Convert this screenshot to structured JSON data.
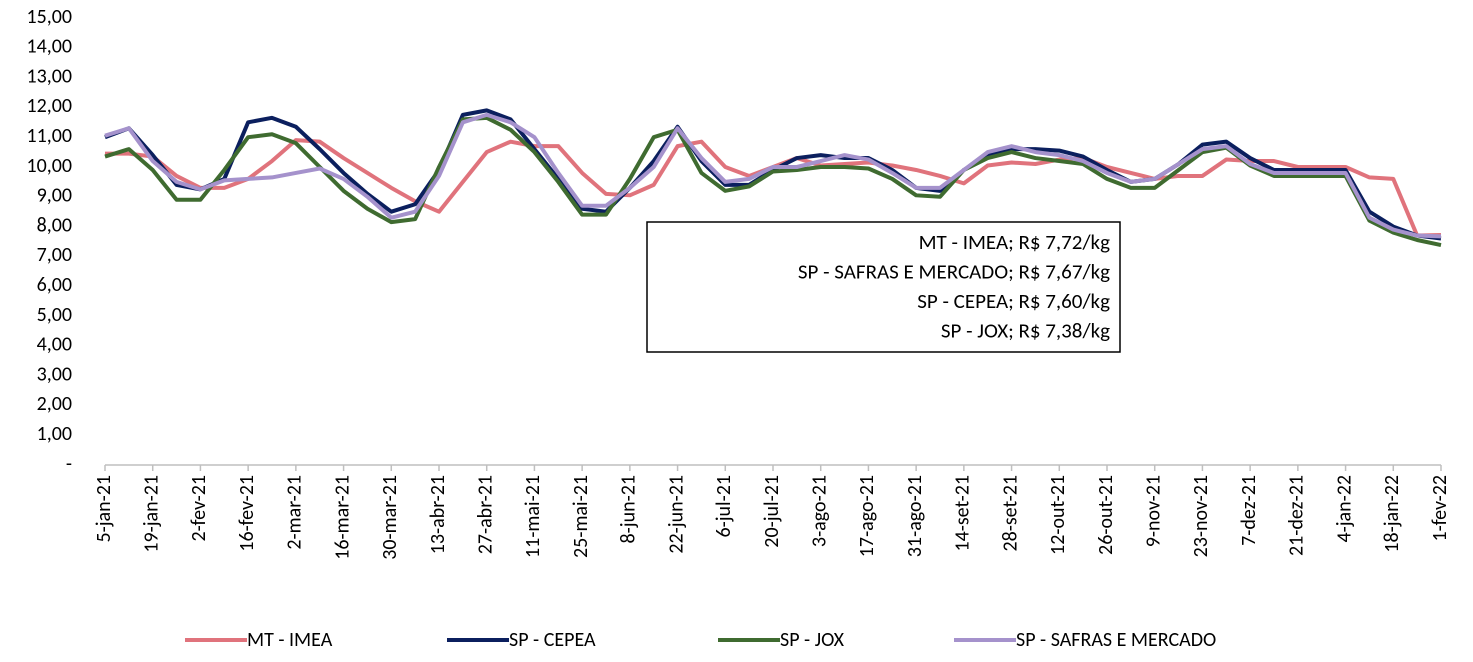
{
  "chart_data": {
    "type": "line",
    "categories": [
      "5-jan-21",
      null,
      "19-jan-21",
      null,
      "2-fev-21",
      null,
      "16-fev-21",
      null,
      "2-mar-21",
      null,
      "16-mar-21",
      null,
      "30-mar-21",
      null,
      "13-abr-21",
      null,
      "27-abr-21",
      null,
      "11-mai-21",
      null,
      "25-mai-21",
      null,
      "8-jun-21",
      null,
      "22-jun-21",
      null,
      "6-jul-21",
      null,
      "20-jul-21",
      null,
      "3-ago-21",
      null,
      "17-ago-21",
      null,
      "31-ago-21",
      null,
      "14-set-21",
      null,
      "28-set-21",
      null,
      "12-out-21",
      null,
      "26-out-21",
      null,
      "9-nov-21",
      null,
      "23-nov-21",
      null,
      "7-dez-21",
      null,
      "21-dez-21",
      null,
      "4-jan-22",
      null,
      "18-jan-22",
      null,
      "1-fev-22"
    ],
    "series": [
      {
        "name": "MT - IMEA",
        "color": "#e0737c",
        "values": [
          10.45,
          10.45,
          10.35,
          9.7,
          9.3,
          9.3,
          9.6,
          10.2,
          10.9,
          10.85,
          10.3,
          9.8,
          9.3,
          8.85,
          8.5,
          9.5,
          10.5,
          10.85,
          10.7,
          10.7,
          9.8,
          9.1,
          9.05,
          9.4,
          10.7,
          10.85,
          10.0,
          9.7,
          10.0,
          10.3,
          10.05,
          10.1,
          10.15,
          10.05,
          9.9,
          9.7,
          9.45,
          10.05,
          10.15,
          10.1,
          10.25,
          10.3,
          10.0,
          9.8,
          9.6,
          9.7,
          9.7,
          10.25,
          10.2,
          10.2,
          10.0,
          10.0,
          10.0,
          9.65,
          9.6,
          7.7,
          7.72
        ]
      },
      {
        "name": "SP - CEPEA",
        "color": "#0b1f5e",
        "values": [
          11.0,
          11.3,
          10.4,
          9.4,
          9.25,
          9.6,
          11.5,
          11.65,
          11.35,
          10.6,
          9.8,
          9.1,
          8.5,
          8.75,
          9.9,
          11.75,
          11.9,
          11.6,
          10.6,
          9.6,
          8.6,
          8.5,
          9.3,
          10.2,
          11.35,
          10.2,
          9.4,
          9.4,
          9.9,
          10.3,
          10.4,
          10.3,
          10.3,
          9.9,
          9.3,
          9.2,
          9.9,
          10.4,
          10.6,
          10.6,
          10.55,
          10.35,
          9.9,
          9.5,
          9.6,
          10.1,
          10.75,
          10.85,
          10.3,
          9.9,
          9.9,
          9.9,
          9.9,
          8.5,
          8.0,
          7.7,
          7.6
        ]
      },
      {
        "name": "SP - JOX",
        "color": "#3f6b30",
        "values": [
          10.35,
          10.6,
          9.9,
          8.9,
          8.9,
          9.9,
          11.0,
          11.1,
          10.8,
          10.0,
          9.2,
          8.6,
          8.15,
          8.25,
          10.0,
          11.6,
          11.65,
          11.25,
          10.5,
          9.5,
          8.4,
          8.4,
          9.6,
          11.0,
          11.25,
          9.8,
          9.2,
          9.35,
          9.85,
          9.9,
          10.0,
          10.0,
          9.95,
          9.6,
          9.05,
          9.0,
          9.9,
          10.3,
          10.5,
          10.3,
          10.2,
          10.1,
          9.6,
          9.3,
          9.3,
          9.9,
          10.5,
          10.65,
          10.05,
          9.7,
          9.7,
          9.7,
          9.7,
          8.2,
          7.8,
          7.55,
          7.38
        ]
      },
      {
        "name": "SP - SAFRAS E MERCADO",
        "color": "#a592cc",
        "values": [
          11.05,
          11.3,
          10.2,
          9.5,
          9.25,
          9.55,
          9.6,
          9.65,
          9.8,
          9.95,
          9.6,
          9.0,
          8.3,
          8.5,
          9.7,
          11.5,
          11.75,
          11.5,
          11.0,
          9.8,
          8.7,
          8.7,
          9.3,
          10.0,
          11.3,
          10.3,
          9.5,
          9.6,
          10.0,
          10.0,
          10.2,
          10.4,
          10.25,
          9.8,
          9.3,
          9.3,
          9.9,
          10.5,
          10.7,
          10.5,
          10.4,
          10.2,
          9.8,
          9.5,
          9.6,
          10.1,
          10.6,
          10.7,
          10.1,
          9.8,
          9.8,
          9.8,
          9.8,
          8.3,
          7.9,
          7.7,
          7.67
        ]
      }
    ],
    "ylim": [
      0,
      15
    ],
    "yticks": [
      {
        "value": 0,
        "label": "-"
      },
      {
        "value": 1,
        "label": "1,00"
      },
      {
        "value": 2,
        "label": "2,00"
      },
      {
        "value": 3,
        "label": "3,00"
      },
      {
        "value": 4,
        "label": "4,00"
      },
      {
        "value": 5,
        "label": "5,00"
      },
      {
        "value": 6,
        "label": "6,00"
      },
      {
        "value": 7,
        "label": "7,00"
      },
      {
        "value": 8,
        "label": "8,00"
      },
      {
        "value": 9,
        "label": "9,00"
      },
      {
        "value": 10,
        "label": "10,00"
      },
      {
        "value": 11,
        "label": "11,00"
      },
      {
        "value": 12,
        "label": "12,00"
      },
      {
        "value": 13,
        "label": "13,00"
      },
      {
        "value": 14,
        "label": "14,00"
      },
      {
        "value": 15,
        "label": "15,00"
      }
    ],
    "annotations": [
      "MT - IMEA; R$ 7,72/kg",
      "SP - SAFRAS E MERCADO; R$ 7,67/kg",
      "SP - CEPEA; R$ 7,60/kg",
      "SP - JOX; R$ 7,38/kg"
    ],
    "legend": "bottom",
    "grid": false
  }
}
